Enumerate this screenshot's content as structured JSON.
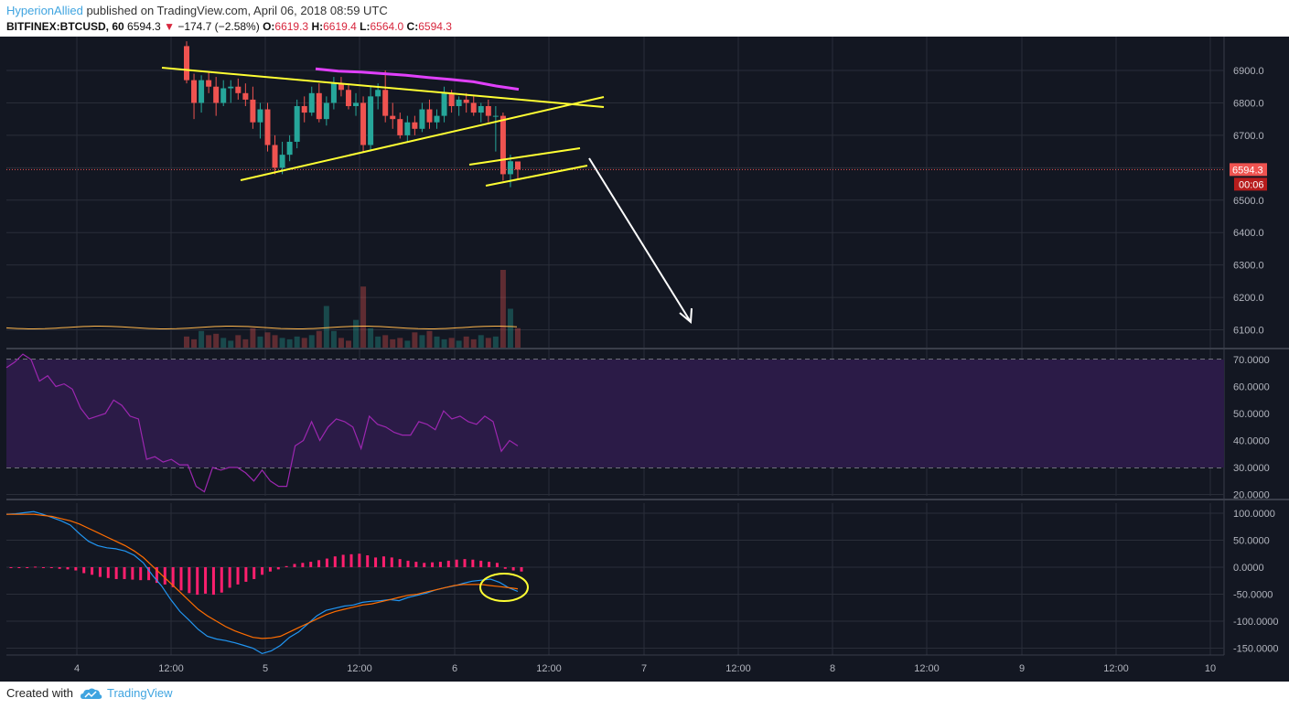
{
  "header": {
    "author": "HyperionAllied",
    "published_text": "published on TradingView.com, April 06, 2018 08:59 UTC",
    "symbol": "BITFINEX:BTCUSD, 60",
    "last": "6594.3",
    "change_arrow": "▼",
    "change": "−174.7 (−2.58%)",
    "open_label": "O:",
    "open": "6619.3",
    "high_label": "H:",
    "high": "6619.4",
    "low_label": "L:",
    "low": "6564.0",
    "close_label": "C:",
    "close": "6594.3"
  },
  "footer": {
    "created_with": "Created with",
    "brand": "TradingView"
  },
  "colors": {
    "background": "#131722",
    "grid": "#2a2e39",
    "up": "#26a69a",
    "down": "#ef5350",
    "trendline": "#ffff33",
    "ma": "#e040fb",
    "rsi": "#9c27b0",
    "macd": "#2196f3",
    "signal": "#ff6d00",
    "histogram": "#ff1f6e"
  },
  "chart_data": [
    {
      "type": "candlestick",
      "title": "BITFINEX:BTCUSD, 60",
      "ylim": [
        6040,
        7000
      ],
      "yticks": [
        "6900.0",
        "6800.0",
        "6700.0",
        "6600.0",
        "6500.0",
        "6400.0",
        "6300.0",
        "6200.0",
        "6100.0"
      ],
      "last_price_label": "6594.3",
      "countdown_label": "00:06",
      "xticks": [
        "4",
        "12:00",
        "5",
        "12:00",
        "6",
        "12:00",
        "7",
        "12:00",
        "8",
        "12:00",
        "9",
        "12:00",
        "10"
      ],
      "candles_ohlc": [
        [
          6975,
          6990,
          6860,
          6870
        ],
        [
          6870,
          6890,
          6750,
          6800
        ],
        [
          6800,
          6885,
          6770,
          6870
        ],
        [
          6870,
          6895,
          6830,
          6850
        ],
        [
          6850,
          6880,
          6760,
          6800
        ],
        [
          6800,
          6870,
          6790,
          6845
        ],
        [
          6845,
          6870,
          6800,
          6850
        ],
        [
          6850,
          6875,
          6810,
          6830
        ],
        [
          6830,
          6860,
          6790,
          6810
        ],
        [
          6810,
          6850,
          6720,
          6740
        ],
        [
          6740,
          6800,
          6690,
          6780
        ],
        [
          6780,
          6800,
          6650,
          6670
        ],
        [
          6670,
          6700,
          6580,
          6600
        ],
        [
          6600,
          6680,
          6580,
          6640
        ],
        [
          6640,
          6700,
          6620,
          6680
        ],
        [
          6680,
          6810,
          6660,
          6790
        ],
        [
          6790,
          6820,
          6740,
          6770
        ],
        [
          6770,
          6850,
          6760,
          6830
        ],
        [
          6830,
          6860,
          6740,
          6750
        ],
        [
          6750,
          6820,
          6730,
          6800
        ],
        [
          6800,
          6880,
          6780,
          6860
        ],
        [
          6860,
          6880,
          6820,
          6840
        ],
        [
          6840,
          6860,
          6780,
          6790
        ],
        [
          6790,
          6830,
          6760,
          6800
        ],
        [
          6800,
          6820,
          6650,
          6670
        ],
        [
          6670,
          6850,
          6650,
          6820
        ],
        [
          6820,
          6860,
          6780,
          6840
        ],
        [
          6840,
          6900,
          6740,
          6760
        ],
        [
          6760,
          6800,
          6720,
          6750
        ],
        [
          6750,
          6770,
          6690,
          6700
        ],
        [
          6700,
          6760,
          6680,
          6740
        ],
        [
          6740,
          6760,
          6700,
          6720
        ],
        [
          6720,
          6800,
          6710,
          6780
        ],
        [
          6780,
          6810,
          6720,
          6740
        ],
        [
          6740,
          6780,
          6720,
          6760
        ],
        [
          6760,
          6850,
          6740,
          6830
        ],
        [
          6830,
          6840,
          6770,
          6790
        ],
        [
          6790,
          6820,
          6760,
          6810
        ],
        [
          6810,
          6830,
          6770,
          6800
        ],
        [
          6800,
          6820,
          6760,
          6770
        ],
        [
          6770,
          6800,
          6740,
          6790
        ],
        [
          6790,
          6810,
          6740,
          6760
        ],
        [
          6760,
          6790,
          6650,
          6760
        ],
        [
          6760,
          6770,
          6560,
          6580
        ],
        [
          6580,
          6640,
          6540,
          6620
        ],
        [
          6619.3,
          6619.4,
          6564.0,
          6594.3
        ]
      ],
      "volume": [
        8,
        6,
        12,
        9,
        10,
        7,
        5,
        9,
        6,
        14,
        8,
        11,
        9,
        7,
        6,
        8,
        7,
        9,
        12,
        30,
        12,
        7,
        5,
        20,
        44,
        14,
        8,
        9,
        6,
        7,
        5,
        11,
        9,
        12,
        8,
        6,
        7,
        5,
        8,
        6,
        9,
        7,
        8,
        56,
        28,
        14
      ],
      "moving_average_vals": [
        6905,
        6898,
        6895,
        6890,
        6885,
        6878,
        6872,
        6865,
        6852,
        6842
      ],
      "annotation": "yellow triangle trendlines, parallel channel and white down arrow"
    },
    {
      "type": "line",
      "title": "RSI",
      "ylim": [
        18,
        75
      ],
      "yticks": [
        "70.0000",
        "60.0000",
        "50.0000",
        "40.0000",
        "30.0000",
        "20.0000"
      ],
      "band": [
        30,
        70
      ],
      "series": [
        {
          "values": [
            67,
            69,
            72,
            70,
            62,
            64,
            60,
            61,
            59,
            52,
            48,
            49,
            50,
            55,
            53,
            49,
            48,
            33,
            34,
            32,
            33,
            31,
            31,
            23,
            21,
            30,
            29,
            30,
            30,
            28,
            25,
            29,
            25,
            23,
            23,
            38,
            40,
            47,
            40,
            45,
            48,
            47,
            45,
            37,
            49,
            46,
            45,
            43,
            42,
            42,
            47,
            46,
            44,
            51,
            48,
            49,
            47,
            46,
            49,
            47,
            36,
            40,
            38
          ]
        }
      ]
    },
    {
      "type": "line",
      "title": "MACD",
      "ylim": [
        -170,
        110
      ],
      "yticks": [
        "100.0000",
        "50.0000",
        "0.0000",
        "-50.0000",
        "-100.0000",
        "-150.0000"
      ],
      "series": [
        {
          "values": [
            98,
            99,
            101,
            103,
            98,
            92,
            86,
            78,
            62,
            48,
            40,
            36,
            34,
            30,
            22,
            8,
            -15,
            -35,
            -60,
            -82,
            -98,
            -115,
            -128,
            -133,
            -136,
            -140,
            -145,
            -150,
            -160,
            -155,
            -145,
            -130,
            -120,
            -105,
            -90,
            -80,
            -76,
            -72,
            -70,
            -65,
            -63,
            -62,
            -60,
            -62,
            -56,
            -52,
            -48,
            -42,
            -38,
            -35,
            -30,
            -26,
            -24,
            -22,
            -28,
            -38,
            -45
          ]
        },
        {
          "values": [
            98,
            98,
            98,
            98,
            96,
            94,
            90,
            86,
            80,
            72,
            64,
            56,
            48,
            40,
            30,
            18,
            2,
            -14,
            -30,
            -46,
            -62,
            -78,
            -90,
            -100,
            -110,
            -118,
            -124,
            -130,
            -132,
            -131,
            -128,
            -120,
            -112,
            -104,
            -96,
            -88,
            -82,
            -78,
            -74,
            -70,
            -68,
            -64,
            -60,
            -56,
            -52,
            -50,
            -46,
            -42,
            -38,
            -34,
            -32,
            -32,
            -32,
            -34,
            -36,
            -38,
            -40
          ]
        }
      ],
      "histogram": [
        0,
        0,
        0,
        1,
        -1,
        -1,
        -3,
        -4,
        -6,
        -11,
        -14,
        -18,
        -20,
        -22,
        -22,
        -23,
        -24,
        -24,
        -29,
        -32,
        -37,
        -43,
        -48,
        -51,
        -49,
        -51,
        -47,
        -38,
        -32,
        -27,
        -22,
        -14,
        -8,
        -4,
        2,
        6,
        8,
        10,
        13,
        16,
        20,
        23,
        24,
        25,
        22,
        18,
        20,
        18,
        15,
        12,
        10,
        8,
        9,
        10,
        12,
        14,
        15,
        14,
        12,
        10,
        8,
        -3,
        -6,
        -8
      ]
    }
  ]
}
